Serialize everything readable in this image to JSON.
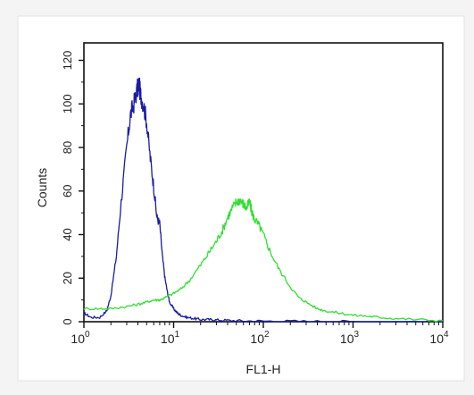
{
  "chart_data": {
    "type": "line",
    "xlabel": "FL1-H",
    "ylabel": "Counts",
    "x_scale": "log",
    "xlim": [
      1,
      10000
    ],
    "ylim": [
      0,
      128
    ],
    "x_ticks": [
      {
        "value": 1,
        "base": "10",
        "exp": "0"
      },
      {
        "value": 10,
        "base": "10",
        "exp": "1"
      },
      {
        "value": 100,
        "base": "10",
        "exp": "2"
      },
      {
        "value": 1000,
        "base": "10",
        "exp": "3"
      },
      {
        "value": 10000,
        "base": "10",
        "exp": "4"
      }
    ],
    "y_ticks": [
      0,
      20,
      40,
      60,
      80,
      100,
      120
    ],
    "grid": false,
    "legend": "none",
    "series": [
      {
        "color": "#1a1aa8",
        "x": [
          1,
          1.2,
          1.5,
          1.8,
          2,
          2.3,
          2.6,
          3,
          3.3,
          3.6,
          3.9,
          4.1,
          4.3,
          4.6,
          5,
          5.5,
          6,
          6.5,
          7,
          7.5,
          8,
          8.5,
          9,
          10,
          11,
          12,
          14,
          17,
          20,
          25,
          30,
          40,
          60,
          100,
          200,
          500,
          1000,
          3000,
          10000
        ],
        "values": [
          4,
          2,
          2,
          5,
          12,
          30,
          55,
          80,
          95,
          100,
          106,
          109,
          104,
          100,
          92,
          75,
          62,
          48,
          45,
          30,
          20,
          14,
          9,
          6,
          4,
          3,
          2,
          1.5,
          1,
          1,
          0.8,
          0.6,
          0.4,
          0.3,
          0.2,
          0.1,
          0.1,
          0,
          0
        ]
      },
      {
        "color": "#33dd33",
        "x": [
          1,
          1.5,
          2,
          3,
          4,
          5,
          6,
          7,
          8,
          10,
          12,
          15,
          20,
          25,
          30,
          35,
          40,
          45,
          50,
          55,
          60,
          65,
          70,
          75,
          80,
          90,
          100,
          120,
          150,
          200,
          250,
          300,
          400,
          500,
          700,
          1000,
          1500,
          2000,
          3000,
          5000,
          10000
        ],
        "values": [
          6,
          6,
          6,
          7,
          8,
          9,
          10,
          10,
          11,
          13,
          15,
          19,
          26,
          32,
          37,
          42,
          48,
          52,
          55,
          56,
          54,
          52,
          55,
          50,
          47,
          44,
          40,
          32,
          24,
          16,
          11,
          9,
          6,
          5,
          4,
          3,
          2.5,
          2,
          1.5,
          1,
          0.5
        ]
      }
    ]
  }
}
